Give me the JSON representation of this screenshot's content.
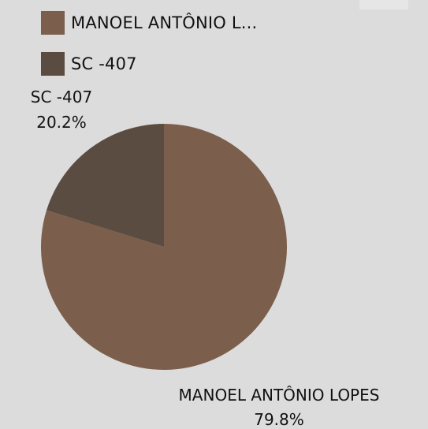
{
  "chart_data": {
    "type": "pie",
    "title": "",
    "slices": [
      {
        "name": "MANOEL ANTÔNIO LOPES",
        "percent": 79.8,
        "color": "#7b5e4c"
      },
      {
        "name": "SC -407",
        "percent": 20.2,
        "color": "#5b4c41"
      }
    ],
    "slice_labels": [
      {
        "name": "MANOEL ANTÔNIO LOPES",
        "value_text": "79.8%"
      },
      {
        "name": "SC -407",
        "value_text": "20.2%"
      }
    ],
    "legend": {
      "placement": "top-left",
      "entries": [
        {
          "label": "MANOEL ANTÔNIO L...",
          "color": "#7b5e4c"
        },
        {
          "label": "SC -407",
          "color": "#5b4c41"
        }
      ]
    }
  }
}
